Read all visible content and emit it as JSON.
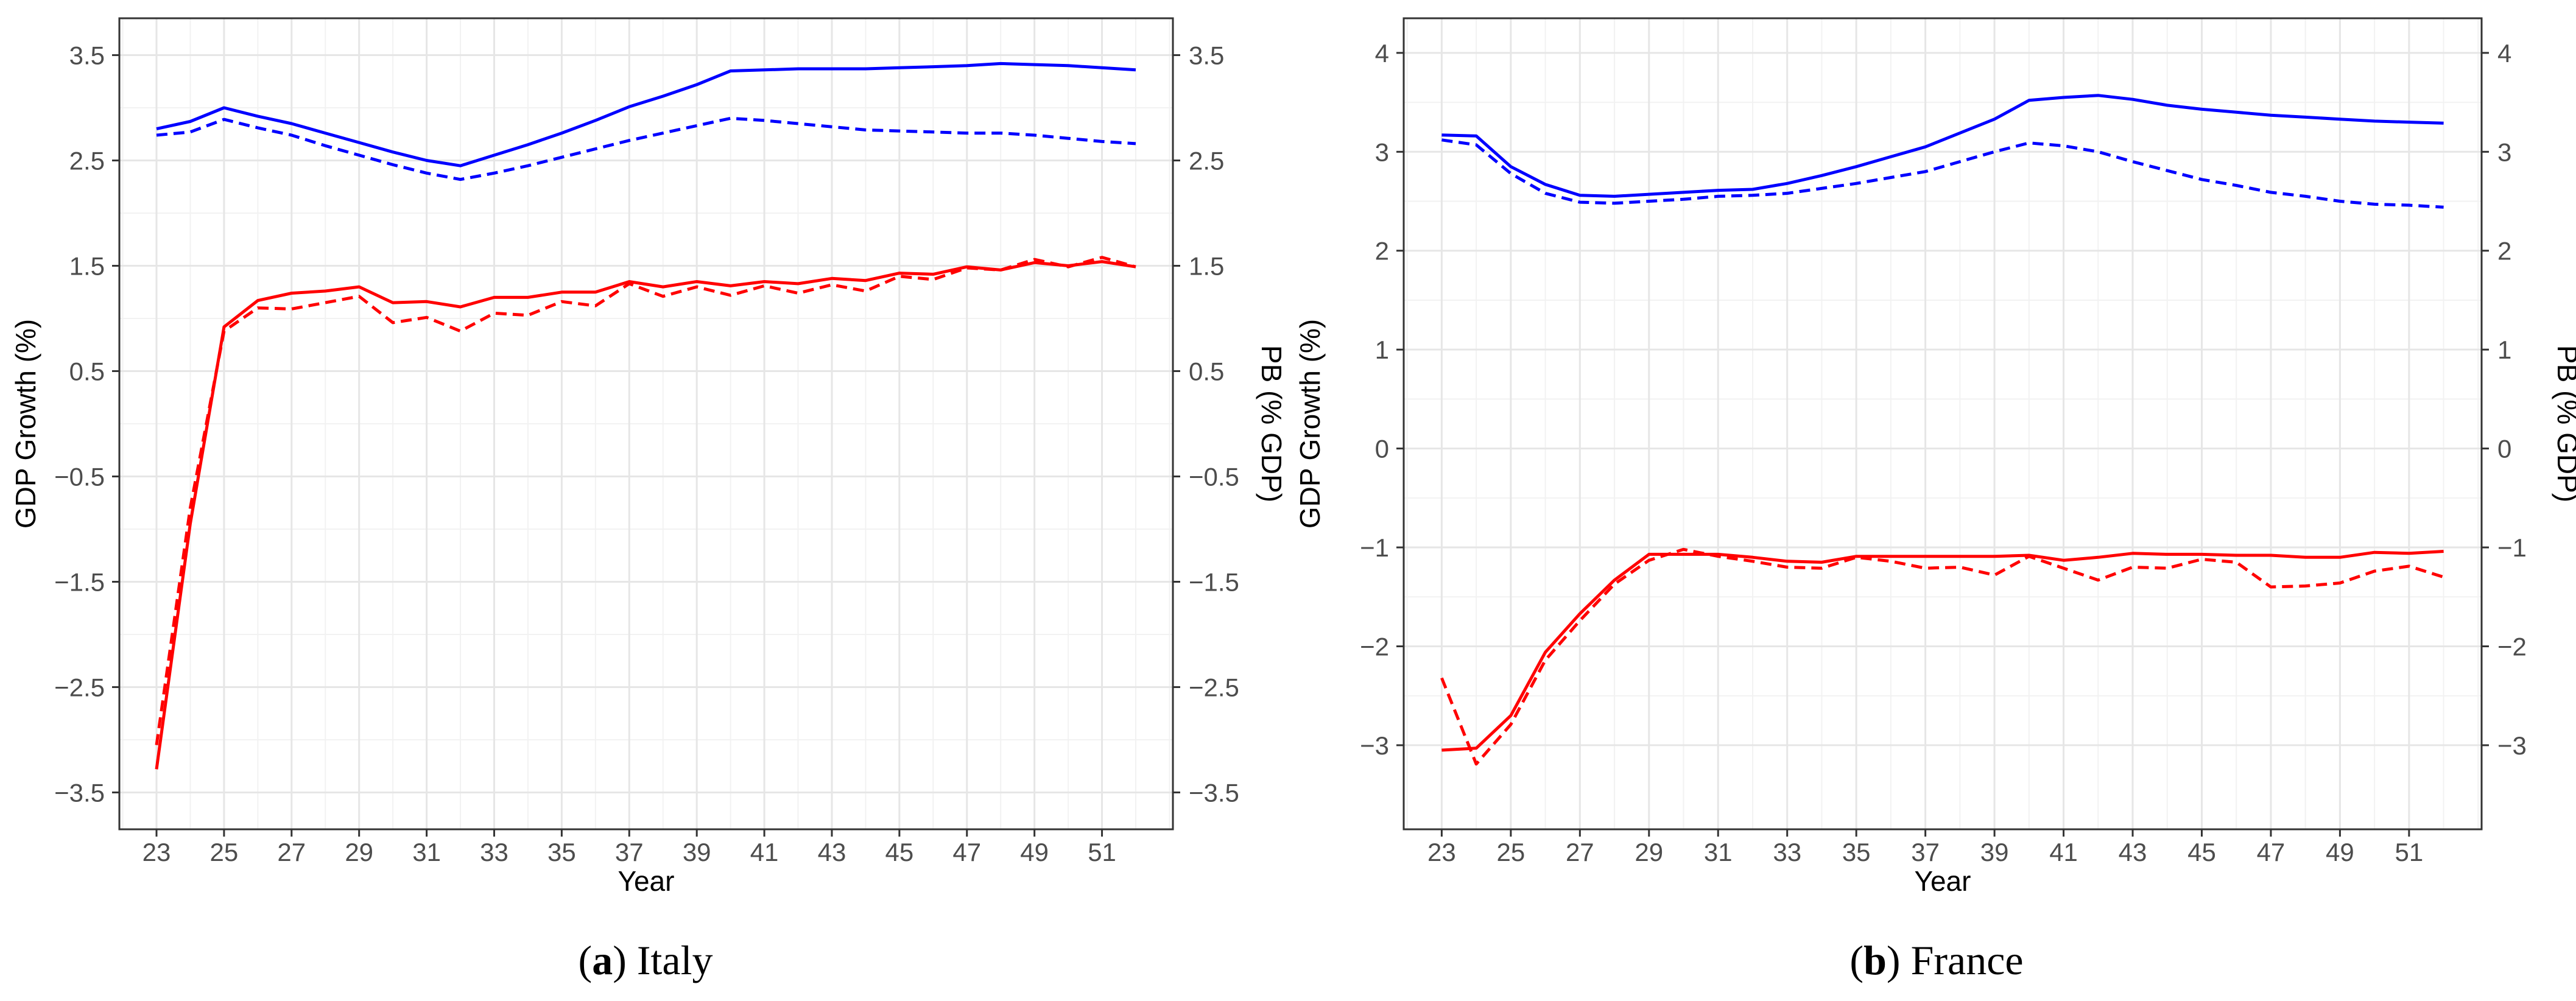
{
  "chart_data": [
    {
      "type": "line",
      "caption_letter": "a",
      "caption_text": "Italy",
      "xlabel": "Year",
      "ylabel_left": "GDP Growth (%)",
      "ylabel_right": "PB (% GDP)",
      "ylim": [
        -3.85,
        3.85
      ],
      "xlim": [
        21.9,
        53.1
      ],
      "x_ticks": [
        23,
        25,
        27,
        29,
        31,
        33,
        35,
        37,
        39,
        41,
        43,
        45,
        47,
        49,
        51
      ],
      "x_tick_labels": [
        "23",
        "25",
        "27",
        "29",
        "31",
        "33",
        "35",
        "37",
        "39",
        "41",
        "43",
        "45",
        "47",
        "49",
        "51"
      ],
      "y_ticks": [
        3.5,
        2.5,
        1.5,
        0.5,
        -0.5,
        -1.5,
        -2.5,
        -3.5
      ],
      "y_tick_labels_left": [
        "3.5",
        "2.5",
        "1.5",
        "0.5",
        "−0.5",
        "−1.5",
        "−2.5",
        "−3.5"
      ],
      "y_tick_labels_right": [
        "3.5",
        "2.5",
        "1.5",
        "0.5",
        "−0.5",
        "−1.5",
        "−2.5",
        "−3.5"
      ],
      "grid": true,
      "x": [
        23,
        24,
        25,
        26,
        27,
        28,
        29,
        30,
        31,
        32,
        33,
        34,
        35,
        36,
        37,
        38,
        39,
        40,
        41,
        42,
        43,
        44,
        45,
        46,
        47,
        48,
        49,
        50,
        51,
        52
      ],
      "series": [
        {
          "color": "#0000ff",
          "dash": "solid",
          "values": [
            2.8,
            2.87,
            3.0,
            2.92,
            2.85,
            2.76,
            2.67,
            2.58,
            2.5,
            2.45,
            2.55,
            2.65,
            2.76,
            2.88,
            3.01,
            3.11,
            3.22,
            3.35,
            3.36,
            3.37,
            3.37,
            3.37,
            3.38,
            3.39,
            3.4,
            3.42,
            3.41,
            3.4,
            3.38,
            3.36
          ]
        },
        {
          "color": "#0000ff",
          "dash": "dashed",
          "values": [
            2.74,
            2.77,
            2.89,
            2.81,
            2.74,
            2.64,
            2.55,
            2.46,
            2.38,
            2.32,
            2.38,
            2.45,
            2.53,
            2.61,
            2.69,
            2.76,
            2.83,
            2.9,
            2.88,
            2.85,
            2.82,
            2.79,
            2.78,
            2.77,
            2.76,
            2.76,
            2.74,
            2.71,
            2.68,
            2.66
          ]
        },
        {
          "color": "#ff0000",
          "dash": "solid",
          "values": [
            -3.28,
            -0.95,
            0.92,
            1.17,
            1.24,
            1.26,
            1.3,
            1.15,
            1.16,
            1.11,
            1.2,
            1.2,
            1.25,
            1.25,
            1.35,
            1.3,
            1.35,
            1.31,
            1.35,
            1.33,
            1.38,
            1.36,
            1.43,
            1.42,
            1.49,
            1.46,
            1.53,
            1.5,
            1.54,
            1.49
          ]
        },
        {
          "color": "#ff0000",
          "dash": "dashed",
          "values": [
            -3.05,
            -0.8,
            0.88,
            1.1,
            1.09,
            1.15,
            1.21,
            0.96,
            1.01,
            0.88,
            1.05,
            1.03,
            1.16,
            1.12,
            1.33,
            1.21,
            1.3,
            1.22,
            1.31,
            1.24,
            1.32,
            1.26,
            1.4,
            1.37,
            1.48,
            1.46,
            1.56,
            1.49,
            1.58,
            1.49
          ]
        }
      ]
    },
    {
      "type": "line",
      "caption_letter": "b",
      "caption_text": "France",
      "xlabel": "Year",
      "ylabel_left": "GDP Growth (%)",
      "ylabel_right": "PB (% GDP)",
      "ylim": [
        -3.85,
        4.35
      ],
      "xlim": [
        21.9,
        53.1
      ],
      "x_ticks": [
        23,
        25,
        27,
        29,
        31,
        33,
        35,
        37,
        39,
        41,
        43,
        45,
        47,
        49,
        51
      ],
      "x_tick_labels": [
        "23",
        "25",
        "27",
        "29",
        "31",
        "33",
        "35",
        "37",
        "39",
        "41",
        "43",
        "45",
        "47",
        "49",
        "51"
      ],
      "y_ticks": [
        4,
        3,
        2,
        1,
        0,
        -1,
        -2,
        -3
      ],
      "y_tick_labels_left": [
        "4",
        "3",
        "2",
        "1",
        "0",
        "−1",
        "−2",
        "−3"
      ],
      "y_tick_labels_right": [
        "4",
        "3",
        "2",
        "1",
        "0",
        "−1",
        "−2",
        "−3"
      ],
      "grid": true,
      "x": [
        23,
        24,
        25,
        26,
        27,
        28,
        29,
        30,
        31,
        32,
        33,
        34,
        35,
        36,
        37,
        38,
        39,
        40,
        41,
        42,
        43,
        44,
        45,
        46,
        47,
        48,
        49,
        50,
        51,
        52
      ],
      "series": [
        {
          "color": "#0000ff",
          "dash": "solid",
          "values": [
            3.17,
            3.16,
            2.85,
            2.67,
            2.56,
            2.55,
            2.57,
            2.59,
            2.61,
            2.62,
            2.68,
            2.76,
            2.85,
            2.95,
            3.05,
            3.19,
            3.33,
            3.52,
            3.55,
            3.57,
            3.53,
            3.47,
            3.43,
            3.4,
            3.37,
            3.35,
            3.33,
            3.31,
            3.3,
            3.29
          ]
        },
        {
          "color": "#0000ff",
          "dash": "dashed",
          "values": [
            3.12,
            3.07,
            2.78,
            2.58,
            2.49,
            2.48,
            2.5,
            2.52,
            2.55,
            2.56,
            2.58,
            2.63,
            2.68,
            2.74,
            2.8,
            2.9,
            3.0,
            3.09,
            3.06,
            3.0,
            2.9,
            2.81,
            2.72,
            2.66,
            2.59,
            2.55,
            2.5,
            2.47,
            2.46,
            2.44
          ]
        },
        {
          "color": "#ff0000",
          "dash": "solid",
          "values": [
            -3.05,
            -3.03,
            -2.7,
            -2.06,
            -1.67,
            -1.33,
            -1.07,
            -1.07,
            -1.07,
            -1.1,
            -1.14,
            -1.15,
            -1.09,
            -1.09,
            -1.09,
            -1.09,
            -1.09,
            -1.08,
            -1.13,
            -1.1,
            -1.06,
            -1.07,
            -1.07,
            -1.08,
            -1.08,
            -1.1,
            -1.1,
            -1.05,
            -1.06,
            -1.04
          ]
        },
        {
          "color": "#ff0000",
          "dash": "dashed",
          "values": [
            -2.32,
            -3.19,
            -2.79,
            -2.14,
            -1.74,
            -1.37,
            -1.13,
            -1.02,
            -1.09,
            -1.14,
            -1.2,
            -1.21,
            -1.1,
            -1.14,
            -1.21,
            -1.2,
            -1.28,
            -1.09,
            -1.21,
            -1.33,
            -1.2,
            -1.21,
            -1.12,
            -1.15,
            -1.4,
            -1.39,
            -1.36,
            -1.24,
            -1.19,
            -1.3
          ]
        }
      ]
    }
  ]
}
